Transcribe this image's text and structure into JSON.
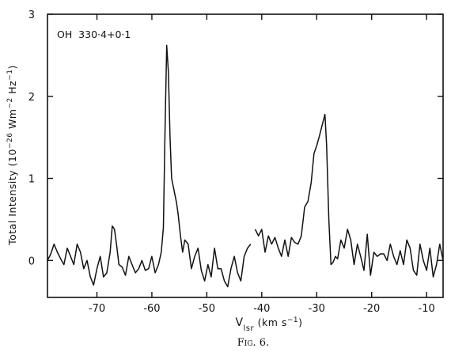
{
  "chart_data": {
    "type": "line",
    "annotation": "OH  330·4+0·1",
    "ylabel_main": "Total Intensity (10",
    "ylabel_exp1": "−26",
    "ylabel_mid": " Wm",
    "ylabel_exp2": "−2",
    "ylabel_hz": " Hz",
    "ylabel_exp3": "−1",
    "ylabel_end": ")",
    "xlabel_v": "V",
    "xlabel_sub": "lsr",
    "xlabel_units": " (km s",
    "xlabel_exp": "−1",
    "xlabel_end": ")",
    "caption": "Fig. 6.",
    "xlim": [
      -79,
      -7
    ],
    "ylim": [
      -0.45,
      3
    ],
    "xticks": [
      -70,
      -60,
      -50,
      -40,
      -30,
      -20,
      -10
    ],
    "xtick_labels": [
      "-70",
      "-60",
      "-50",
      "-40",
      "-30",
      "-20",
      "-10"
    ],
    "yticks": [
      0,
      1,
      2,
      3
    ],
    "ytick_labels": [
      "0",
      "1",
      "2",
      "3"
    ],
    "series": [
      {
        "x": [
          -79.0,
          -78.4,
          -77.8,
          -77.2,
          -76.6,
          -76.0,
          -75.4,
          -74.8,
          -74.2,
          -73.6,
          -73.0,
          -72.4,
          -71.8,
          -71.2,
          -70.6,
          -70.0,
          -69.4,
          -68.8,
          -68.2,
          -67.6,
          -67.2,
          -66.8,
          -66.4,
          -66.0,
          -65.4,
          -64.8,
          -64.2,
          -63.6,
          -63.0,
          -62.4,
          -61.8,
          -61.2,
          -60.6,
          -60.0,
          -59.4,
          -58.8,
          -58.3,
          -57.9,
          -57.6,
          -57.3,
          -57.0,
          -56.7,
          -56.4,
          -56.1,
          -55.8,
          -55.5,
          -55.2,
          -54.8,
          -54.4,
          -54.0,
          -53.4,
          -52.8,
          -52.2,
          -51.6,
          -51.0,
          -50.4,
          -49.8,
          -49.2,
          -48.6,
          -48.0,
          -47.4,
          -46.8,
          -46.2,
          -45.6,
          -45.0,
          -44.4,
          -43.8,
          -43.2,
          -42.6,
          -42.0
        ],
        "y": [
          0.0,
          0.08,
          0.2,
          0.1,
          0.02,
          -0.05,
          0.15,
          0.05,
          -0.05,
          0.2,
          0.1,
          -0.1,
          0.0,
          -0.2,
          -0.3,
          -0.1,
          0.05,
          -0.2,
          -0.15,
          0.1,
          0.42,
          0.38,
          0.18,
          -0.05,
          -0.08,
          -0.18,
          0.05,
          -0.05,
          -0.15,
          -0.1,
          0.0,
          -0.12,
          -0.1,
          0.05,
          -0.15,
          -0.05,
          0.1,
          0.4,
          1.6,
          2.62,
          2.3,
          1.5,
          1.0,
          0.9,
          0.8,
          0.7,
          0.55,
          0.3,
          0.1,
          0.25,
          0.2,
          -0.1,
          0.05,
          0.15,
          -0.12,
          -0.25,
          -0.05,
          -0.2,
          0.15,
          -0.1,
          -0.1,
          -0.25,
          -0.32,
          -0.1,
          0.05,
          -0.15,
          -0.25,
          0.05,
          0.15,
          0.2
        ]
      },
      {
        "x": [
          -41.2,
          -40.6,
          -40.0,
          -39.4,
          -38.8,
          -38.2,
          -37.6,
          -37.0,
          -36.4,
          -35.8,
          -35.2,
          -34.6,
          -34.0,
          -33.4,
          -32.8,
          -32.2,
          -31.6,
          -31.0,
          -30.5,
          -30.0,
          -29.5,
          -29.0,
          -28.5,
          -28.2,
          -27.8,
          -27.4,
          -27.0,
          -26.6,
          -26.2,
          -25.6,
          -25.0,
          -24.4,
          -23.8,
          -23.2,
          -22.6,
          -22.0,
          -21.4,
          -20.8,
          -20.2,
          -19.6,
          -19.0,
          -18.4,
          -17.8,
          -17.2,
          -16.6,
          -16.0,
          -15.4,
          -14.8,
          -14.2,
          -13.6,
          -13.0,
          -12.4,
          -11.8,
          -11.2,
          -10.6,
          -10.0,
          -9.4,
          -8.8,
          -8.2,
          -7.6,
          -7.0
        ],
        "y": [
          0.38,
          0.3,
          0.38,
          0.1,
          0.3,
          0.2,
          0.28,
          0.15,
          0.05,
          0.25,
          0.05,
          0.28,
          0.22,
          0.2,
          0.3,
          0.65,
          0.72,
          0.95,
          1.3,
          1.4,
          1.52,
          1.65,
          1.78,
          1.4,
          0.5,
          -0.05,
          -0.02,
          0.05,
          0.02,
          0.25,
          0.15,
          0.38,
          0.25,
          -0.05,
          0.2,
          0.05,
          -0.12,
          0.32,
          -0.18,
          0.1,
          0.05,
          0.08,
          0.08,
          0.0,
          0.2,
          0.05,
          -0.05,
          0.12,
          -0.05,
          0.25,
          0.15,
          -0.12,
          -0.18,
          0.2,
          0.0,
          -0.12,
          0.15,
          -0.2,
          -0.05,
          0.2,
          0.0
        ]
      }
    ]
  }
}
